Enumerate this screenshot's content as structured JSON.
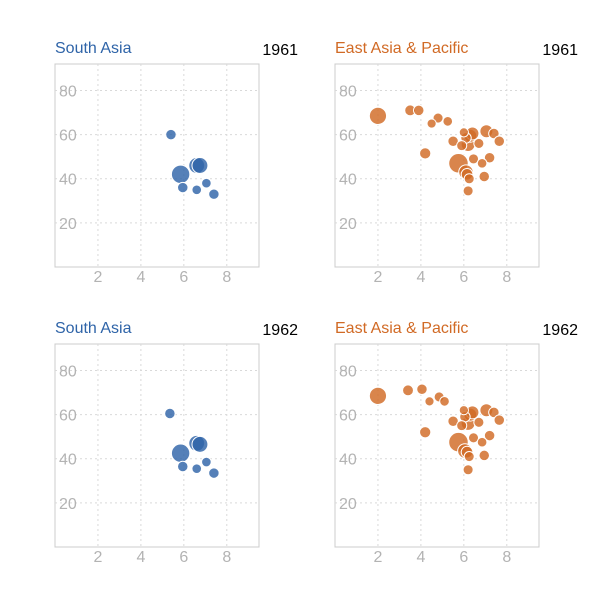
{
  "chart_data": [
    {
      "type": "scatter",
      "title": "South Asia",
      "year": "1961",
      "color": "#2f64a8",
      "xlim": [
        0,
        9.5
      ],
      "ylim": [
        0,
        92
      ],
      "x_ticks": [
        2,
        4,
        6,
        8
      ],
      "y_ticks": [
        20,
        40,
        60,
        80
      ],
      "grid": true,
      "series": [
        {
          "points": [
            {
              "x": 5.4,
              "y": 60.0,
              "size": 1.3
            },
            {
              "x": 5.85,
              "y": 42.0,
              "size": 4.0
            },
            {
              "x": 5.95,
              "y": 36.0,
              "size": 1.3
            },
            {
              "x": 6.6,
              "y": 46.0,
              "size": 3.0
            },
            {
              "x": 6.75,
              "y": 46.0,
              "size": 3.0
            },
            {
              "x": 6.6,
              "y": 35.0,
              "size": 1.1
            },
            {
              "x": 7.05,
              "y": 38.0,
              "size": 1.1
            },
            {
              "x": 7.4,
              "y": 33.0,
              "size": 1.3
            }
          ]
        }
      ]
    },
    {
      "type": "scatter",
      "title": "East Asia & Pacific",
      "year": "1961",
      "color": "#d16a25",
      "xlim": [
        0,
        9.5
      ],
      "ylim": [
        0,
        92
      ],
      "x_ticks": [
        2,
        4,
        6,
        8
      ],
      "y_ticks": [
        20,
        40,
        60,
        80
      ],
      "grid": true,
      "series": [
        {
          "points": [
            {
              "x": 2.0,
              "y": 68.5,
              "size": 3.5
            },
            {
              "x": 3.5,
              "y": 71.0,
              "size": 1.4
            },
            {
              "x": 3.9,
              "y": 71.0,
              "size": 1.3
            },
            {
              "x": 4.5,
              "y": 65.0,
              "size": 1.0
            },
            {
              "x": 4.8,
              "y": 67.5,
              "size": 1.2
            },
            {
              "x": 5.25,
              "y": 66.0,
              "size": 1.1
            },
            {
              "x": 4.2,
              "y": 51.5,
              "size": 1.5
            },
            {
              "x": 5.5,
              "y": 57.0,
              "size": 1.3
            },
            {
              "x": 5.75,
              "y": 47.0,
              "size": 4.5
            },
            {
              "x": 5.9,
              "y": 55.0,
              "size": 1.2
            },
            {
              "x": 6.0,
              "y": 61.0,
              "size": 1.0
            },
            {
              "x": 6.1,
              "y": 58.5,
              "size": 1.3
            },
            {
              "x": 6.2,
              "y": 55.5,
              "size": 2.3
            },
            {
              "x": 6.3,
              "y": 59.5,
              "size": 2.0
            },
            {
              "x": 6.4,
              "y": 60.5,
              "size": 2.0
            },
            {
              "x": 6.1,
              "y": 43.0,
              "size": 2.5
            },
            {
              "x": 6.15,
              "y": 42.0,
              "size": 1.6
            },
            {
              "x": 6.25,
              "y": 40.0,
              "size": 1.2
            },
            {
              "x": 6.2,
              "y": 34.5,
              "size": 1.2
            },
            {
              "x": 6.45,
              "y": 49.0,
              "size": 1.2
            },
            {
              "x": 6.7,
              "y": 56.0,
              "size": 1.2
            },
            {
              "x": 6.85,
              "y": 47.0,
              "size": 1.1
            },
            {
              "x": 6.95,
              "y": 41.0,
              "size": 1.3
            },
            {
              "x": 7.05,
              "y": 61.5,
              "size": 2.0
            },
            {
              "x": 7.2,
              "y": 49.5,
              "size": 1.3
            },
            {
              "x": 7.4,
              "y": 60.5,
              "size": 1.3
            },
            {
              "x": 7.65,
              "y": 57.0,
              "size": 1.3
            }
          ]
        }
      ]
    },
    {
      "type": "scatter",
      "title": "South Asia",
      "year": "1962",
      "color": "#2f64a8",
      "xlim": [
        0,
        9.5
      ],
      "ylim": [
        0,
        92
      ],
      "x_ticks": [
        2,
        4,
        6,
        8
      ],
      "y_ticks": [
        20,
        40,
        60,
        80
      ],
      "grid": true,
      "series": [
        {
          "points": [
            {
              "x": 5.35,
              "y": 60.5,
              "size": 1.3
            },
            {
              "x": 5.85,
              "y": 42.5,
              "size": 4.0
            },
            {
              "x": 5.95,
              "y": 36.5,
              "size": 1.3
            },
            {
              "x": 6.6,
              "y": 47.0,
              "size": 3.0
            },
            {
              "x": 6.75,
              "y": 46.5,
              "size": 3.0
            },
            {
              "x": 6.6,
              "y": 35.5,
              "size": 1.1
            },
            {
              "x": 7.05,
              "y": 38.5,
              "size": 1.1
            },
            {
              "x": 7.4,
              "y": 33.5,
              "size": 1.3
            }
          ]
        }
      ]
    },
    {
      "type": "scatter",
      "title": "East Asia & Pacific",
      "year": "1962",
      "color": "#d16a25",
      "xlim": [
        0,
        9.5
      ],
      "ylim": [
        0,
        92
      ],
      "x_ticks": [
        2,
        4,
        6,
        8
      ],
      "y_ticks": [
        20,
        40,
        60,
        80
      ],
      "grid": true,
      "series": [
        {
          "points": [
            {
              "x": 2.0,
              "y": 68.5,
              "size": 3.5
            },
            {
              "x": 3.4,
              "y": 71.0,
              "size": 1.4
            },
            {
              "x": 4.05,
              "y": 71.5,
              "size": 1.3
            },
            {
              "x": 4.4,
              "y": 66.0,
              "size": 1.0
            },
            {
              "x": 4.85,
              "y": 68.0,
              "size": 1.2
            },
            {
              "x": 5.1,
              "y": 66.0,
              "size": 1.1
            },
            {
              "x": 4.2,
              "y": 52.0,
              "size": 1.5
            },
            {
              "x": 5.5,
              "y": 57.0,
              "size": 1.3
            },
            {
              "x": 5.75,
              "y": 47.5,
              "size": 4.5
            },
            {
              "x": 5.9,
              "y": 55.0,
              "size": 1.2
            },
            {
              "x": 6.0,
              "y": 62.0,
              "size": 1.0
            },
            {
              "x": 6.05,
              "y": 59.0,
              "size": 1.3
            },
            {
              "x": 6.2,
              "y": 56.0,
              "size": 2.3
            },
            {
              "x": 6.3,
              "y": 60.0,
              "size": 2.0
            },
            {
              "x": 6.4,
              "y": 61.0,
              "size": 2.0
            },
            {
              "x": 6.05,
              "y": 43.5,
              "size": 2.5
            },
            {
              "x": 6.15,
              "y": 43.0,
              "size": 1.6
            },
            {
              "x": 6.25,
              "y": 41.0,
              "size": 1.2
            },
            {
              "x": 6.2,
              "y": 35.0,
              "size": 1.2
            },
            {
              "x": 6.45,
              "y": 49.5,
              "size": 1.2
            },
            {
              "x": 6.7,
              "y": 56.5,
              "size": 1.2
            },
            {
              "x": 6.85,
              "y": 47.5,
              "size": 1.1
            },
            {
              "x": 6.95,
              "y": 41.5,
              "size": 1.3
            },
            {
              "x": 7.05,
              "y": 62.0,
              "size": 2.0
            },
            {
              "x": 7.2,
              "y": 50.5,
              "size": 1.3
            },
            {
              "x": 7.4,
              "y": 61.0,
              "size": 1.3
            },
            {
              "x": 7.65,
              "y": 57.5,
              "size": 1.3
            }
          ]
        }
      ]
    }
  ]
}
